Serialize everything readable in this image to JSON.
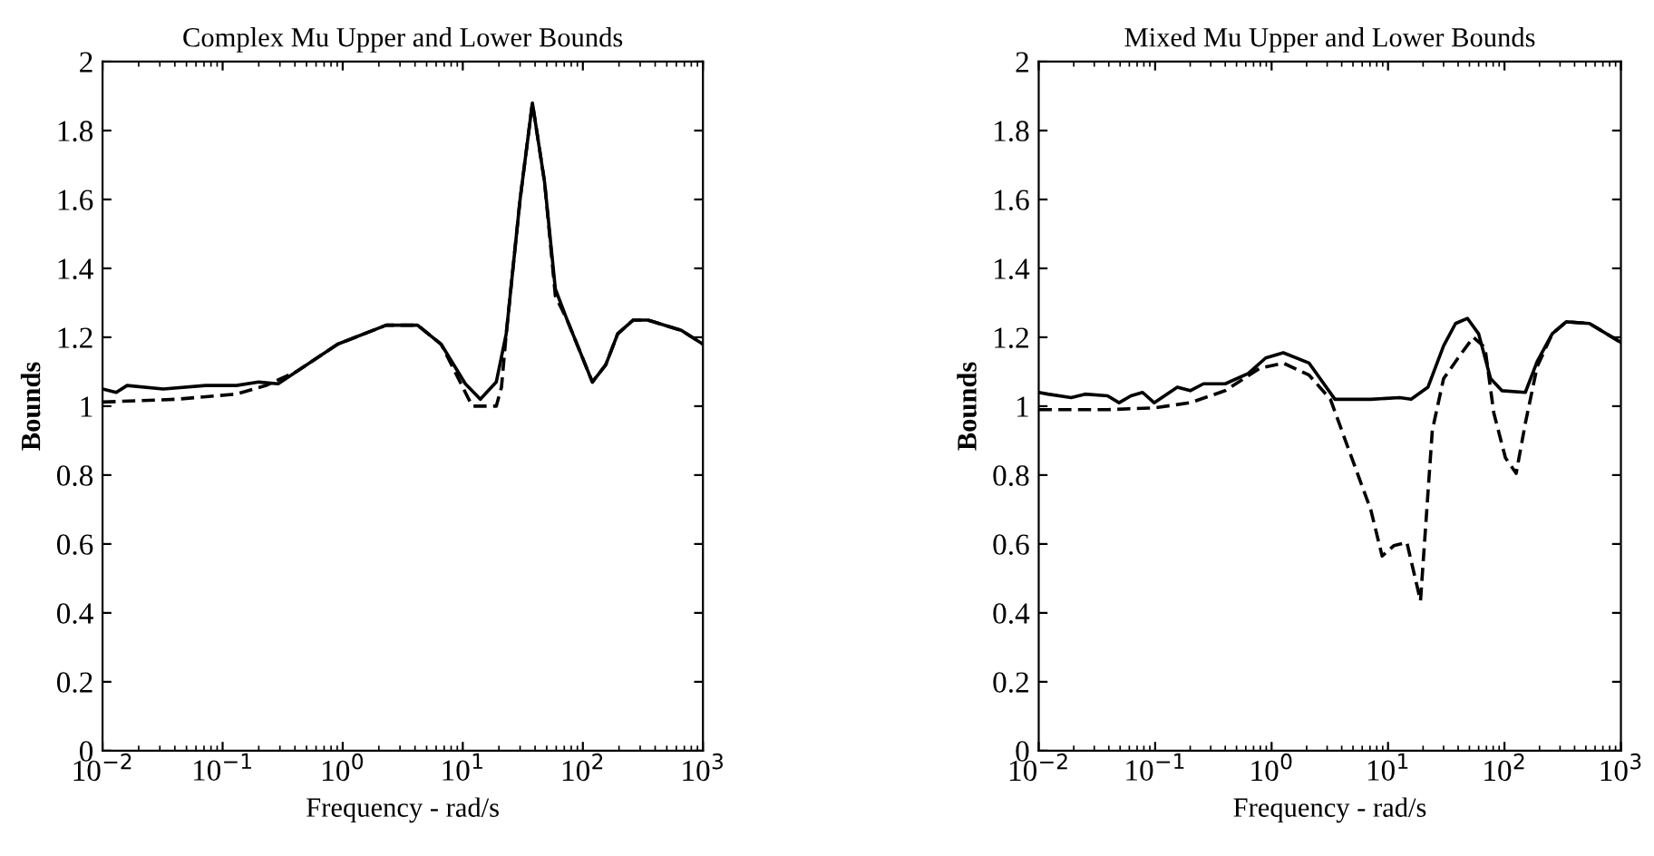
{
  "chart_data": [
    {
      "type": "line",
      "title": "Complex Mu Upper and Lower Bounds",
      "xlabel": "Frequency - rad/s",
      "ylabel": "Bounds",
      "log": "x",
      "grid": false,
      "xlim": [
        0.01,
        1000
      ],
      "ylim": [
        0,
        2
      ],
      "xticks": [
        {
          "value": 0.01,
          "label": "10$^{−2}$"
        },
        {
          "value": 0.1,
          "label": "10$^{−1}$"
        },
        {
          "value": 1,
          "label": "10$^{0}$"
        },
        {
          "value": 10,
          "label": "10$^{1}$"
        },
        {
          "value": 100,
          "label": "10$^{2}$"
        },
        {
          "value": 1000,
          "label": "10$^{3}$"
        }
      ],
      "yticks": [
        0,
        0.2,
        0.4,
        0.6,
        0.8,
        1,
        1.2,
        1.4,
        1.6,
        1.8,
        2
      ],
      "series": [
        {
          "color": "#000000",
          "line_style": "solid",
          "x": [
            0.01,
            0.013,
            0.016,
            0.032,
            0.072,
            0.13,
            0.2,
            0.29,
            0.41,
            0.91,
            2.3,
            4.2,
            6.6,
            10.5,
            14,
            19,
            23,
            30,
            38,
            48,
            59,
            74,
            120,
            155,
            195,
            263,
            347,
            660,
            1000
          ],
          "values": [
            1.05,
            1.04,
            1.06,
            1.05,
            1.06,
            1.06,
            1.07,
            1.065,
            1.1,
            1.18,
            1.235,
            1.235,
            1.18,
            1.065,
            1.02,
            1.07,
            1.21,
            1.6,
            1.88,
            1.65,
            1.34,
            1.25,
            1.07,
            1.12,
            1.21,
            1.25,
            1.25,
            1.22,
            1.18
          ]
        },
        {
          "color": "#000000",
          "line_style": "dashed",
          "x": [
            0.01,
            0.041,
            0.13,
            0.23,
            0.41,
            0.91,
            2.3,
            4.2,
            6.6,
            10.5,
            12,
            19,
            21,
            23,
            30,
            38,
            48,
            59,
            74,
            120,
            155,
            195,
            263,
            347,
            660,
            1000
          ],
          "values": [
            1.012,
            1.02,
            1.035,
            1.06,
            1.1,
            1.18,
            1.235,
            1.235,
            1.18,
            1.04,
            1.0,
            1.0,
            1.055,
            1.21,
            1.6,
            1.88,
            1.65,
            1.32,
            1.25,
            1.07,
            1.12,
            1.21,
            1.25,
            1.25,
            1.22,
            1.18
          ]
        }
      ]
    },
    {
      "type": "line",
      "title": "Mixed Mu Upper and Lower Bounds",
      "xlabel": "Frequency - rad/s",
      "ylabel": "Bounds",
      "log": "x",
      "grid": false,
      "xlim": [
        0.01,
        1000
      ],
      "ylim": [
        0,
        2
      ],
      "xticks": [
        {
          "value": 0.01,
          "label": "10$^{−2}$"
        },
        {
          "value": 0.1,
          "label": "10$^{−1}$"
        },
        {
          "value": 1,
          "label": "10$^{0}$"
        },
        {
          "value": 10,
          "label": "10$^{1}$"
        },
        {
          "value": 100,
          "label": "10$^{2}$"
        },
        {
          "value": 1000,
          "label": "10$^{3}$"
        }
      ],
      "yticks": [
        0,
        0.2,
        0.4,
        0.6,
        0.8,
        1,
        1.2,
        1.4,
        1.6,
        1.8,
        2
      ],
      "series": [
        {
          "color": "#000000",
          "line_style": "solid",
          "x": [
            0.01,
            0.012,
            0.019,
            0.025,
            0.039,
            0.049,
            0.062,
            0.078,
            0.098,
            0.155,
            0.2,
            0.26,
            0.4,
            0.63,
            0.89,
            1.26,
            2.1,
            3.5,
            7.1,
            12.6,
            15.8,
            22,
            30,
            38,
            48,
            60,
            76,
            95,
            151,
            191,
            257,
            339,
            537,
            1000
          ],
          "values": [
            1.04,
            1.035,
            1.025,
            1.035,
            1.03,
            1.01,
            1.03,
            1.04,
            1.01,
            1.055,
            1.045,
            1.065,
            1.065,
            1.095,
            1.14,
            1.155,
            1.125,
            1.02,
            1.02,
            1.025,
            1.02,
            1.055,
            1.175,
            1.24,
            1.255,
            1.21,
            1.08,
            1.045,
            1.04,
            1.13,
            1.21,
            1.245,
            1.24,
            1.185
          ]
        },
        {
          "color": "#000000",
          "line_style": "dashed",
          "x": [
            0.01,
            0.039,
            0.098,
            0.2,
            0.4,
            0.79,
            1.26,
            2.1,
            3.2,
            5.0,
            7.1,
            8.9,
            11.2,
            14.5,
            19,
            24,
            30,
            40,
            54,
            68,
            81,
            102,
            126,
            151,
            191,
            257,
            339,
            537,
            1000
          ],
          "values": [
            0.99,
            0.99,
            0.995,
            1.01,
            1.045,
            1.11,
            1.125,
            1.09,
            1.02,
            0.84,
            0.7,
            0.565,
            0.595,
            0.605,
            0.435,
            0.93,
            1.08,
            1.14,
            1.2,
            1.17,
            0.98,
            0.85,
            0.805,
            0.95,
            1.115,
            1.21,
            1.245,
            1.24,
            1.185
          ]
        }
      ]
    }
  ]
}
